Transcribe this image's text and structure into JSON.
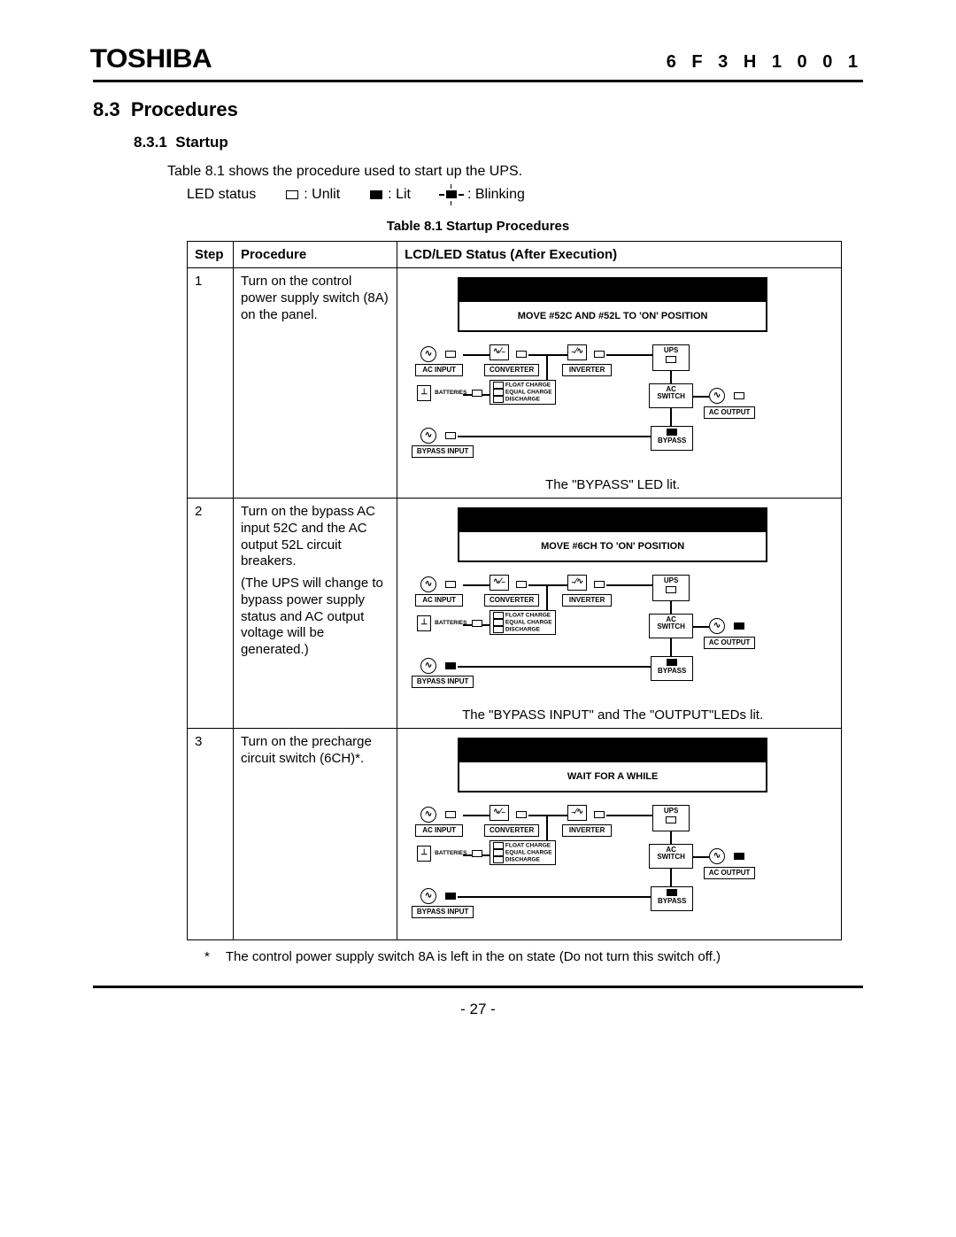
{
  "header": {
    "logo": "TOSHIBA",
    "doc_code": "6 F 3 H 1 0 0 1"
  },
  "section": {
    "number": "8.3",
    "title": "Procedures"
  },
  "subsection": {
    "number": "8.3.1",
    "title": "Startup"
  },
  "intro_line": "Table 8.1 shows the procedure used to start up the UPS.",
  "legend": {
    "lead": "LED status",
    "unlit": ": Unlit",
    "lit": ": Lit",
    "blinking": ": Blinking"
  },
  "table": {
    "caption": "Table 8.1    Startup Procedures",
    "headers": {
      "step": "Step",
      "procedure": "Procedure",
      "status": "LCD/LED Status (After Execution)"
    },
    "rows": [
      {
        "step": "1",
        "procedure_lines": [
          "Turn on the control power supply switch (8A) on the panel."
        ],
        "lcd_message": "MOVE #52C AND #52L TO 'ON' POSITION",
        "leds": {
          "ac_input": "off",
          "converter": "off",
          "inverter": "off",
          "ups": "off",
          "batteries": "off",
          "float": "off",
          "equal": "off",
          "discharge": "off",
          "ac_switch": "off",
          "ac_output": "off",
          "bypass_input": "off",
          "bypass": "on"
        },
        "caption": "The \"BYPASS\" LED lit."
      },
      {
        "step": "2",
        "procedure_lines": [
          "Turn on the bypass AC input 52C and the AC output 52L circuit breakers.",
          "(The UPS will change to bypass power supply status and AC output voltage will be generated.)"
        ],
        "lcd_message": "MOVE #6CH TO 'ON' POSITION",
        "leds": {
          "ac_input": "off",
          "converter": "off",
          "inverter": "off",
          "ups": "off",
          "batteries": "off",
          "float": "off",
          "equal": "off",
          "discharge": "off",
          "ac_switch": "off",
          "ac_output": "on",
          "bypass_input": "on",
          "bypass": "on"
        },
        "caption": "The \"BYPASS INPUT\" and The \"OUTPUT\"LEDs lit."
      },
      {
        "step": "3",
        "procedure_lines": [
          "Turn on the precharge circuit switch (6CH)*."
        ],
        "lcd_message": "WAIT FOR A WHILE",
        "leds": {
          "ac_input": "off",
          "converter": "off",
          "inverter": "off",
          "ups": "off",
          "batteries": "off",
          "float": "off",
          "equal": "off",
          "discharge": "off",
          "ac_switch": "off",
          "ac_output": "on",
          "bypass_input": "on",
          "bypass": "on"
        },
        "caption": ""
      }
    ]
  },
  "labels": {
    "ac_input": "AC INPUT",
    "converter": "CONVERTER",
    "inverter": "INVERTER",
    "ups": "UPS",
    "batteries": "BATTERIES",
    "float": "FLOAT CHARGE",
    "equal": "EQUAL CHARGE",
    "discharge": "DISCHARGE",
    "ac_switch_l1": "AC",
    "ac_switch_l2": "SWITCH",
    "ac_output": "AC OUTPUT",
    "bypass_input": "BYPASS INPUT",
    "bypass": "BYPASS",
    "sine": "∿",
    "conv_sym": "∿⁄₋",
    "inv_sym": "₋⁄∿",
    "batt_sym": "⊥"
  },
  "footnote": {
    "mark": "*",
    "text": "The control power supply switch 8A is left in the on state (Do not turn this switch off.)"
  },
  "page_number": "-   27   -",
  "colors": {
    "text": "#000000",
    "background": "#ffffff",
    "rule": "#000000"
  }
}
